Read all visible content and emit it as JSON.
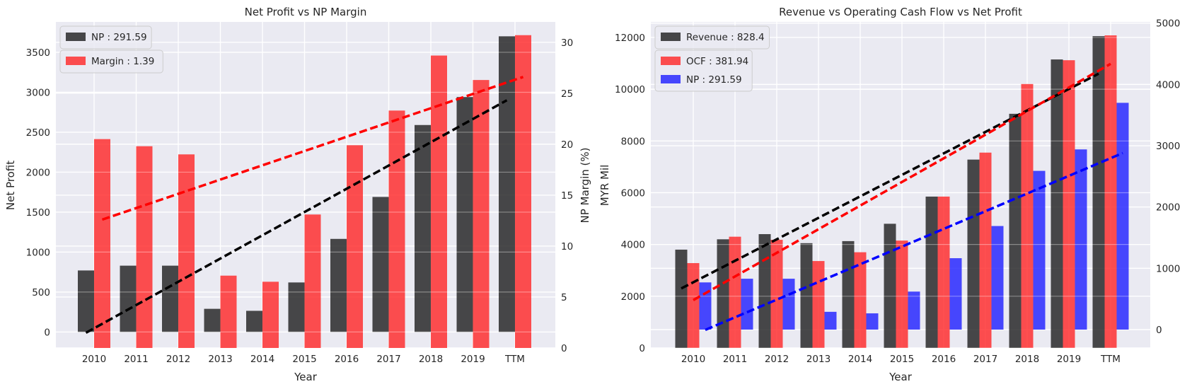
{
  "chart_data": [
    {
      "type": "bar",
      "title": "Net Profit vs NP Margin",
      "xlabel": "Year",
      "ylabel": "Net Profit",
      "ylabel_right": "NP Margin (%)",
      "categories": [
        "2010",
        "2011",
        "2012",
        "2013",
        "2014",
        "2015",
        "2016",
        "2017",
        "2018",
        "2019",
        "TTM"
      ],
      "ylim": [
        -200,
        3880
      ],
      "yticks": [
        0,
        500,
        1000,
        1500,
        2000,
        2500,
        3000,
        3500
      ],
      "ylim_right": [
        0,
        32
      ],
      "yticks_right": [
        0,
        5,
        10,
        15,
        20,
        25,
        30
      ],
      "grid": true,
      "series": [
        {
          "name": "NP",
          "axis": "left",
          "color": "#222222",
          "values": [
            770,
            830,
            830,
            290,
            265,
            620,
            1165,
            1690,
            2590,
            2940,
            3700
          ]
        },
        {
          "name": "Margin",
          "axis": "right",
          "color": "#ff2a2a",
          "values": [
            20.5,
            19.8,
            19.0,
            7.1,
            6.5,
            13.1,
            19.9,
            23.3,
            28.7,
            26.3,
            30.7
          ]
        }
      ],
      "trendlines": [
        {
          "axis": "left",
          "color": "#000000",
          "start": -10,
          "end": 2900
        },
        {
          "axis": "right",
          "color": "#ff0000",
          "start": 12.6,
          "end": 26.6
        }
      ],
      "legend": [
        {
          "label": "NP : 291.59",
          "color": "#222222"
        },
        {
          "label": "Margin : 1.39",
          "color": "#ff2a2a"
        }
      ],
      "legend_position": "top-left"
    },
    {
      "type": "bar",
      "title": "Revenue vs Operating Cash Flow vs Net Profit",
      "xlabel": "Year",
      "ylabel": "MYR Mil",
      "categories": [
        "2010",
        "2011",
        "2012",
        "2013",
        "2014",
        "2015",
        "2016",
        "2017",
        "2018",
        "2019",
        "TTM"
      ],
      "ylim": [
        0,
        12600
      ],
      "yticks": [
        0,
        2000,
        4000,
        6000,
        8000,
        10000,
        12000
      ],
      "ylim_right": [
        -300,
        5020
      ],
      "yticks_right": [
        0,
        1000,
        2000,
        3000,
        4000,
        5000
      ],
      "grid": true,
      "series": [
        {
          "name": "Revenue",
          "axis": "left",
          "color": "#222222",
          "values": [
            3800,
            4200,
            4400,
            4050,
            4130,
            4800,
            5850,
            7280,
            9050,
            11150,
            12050
          ]
        },
        {
          "name": "OCF",
          "axis": "left",
          "color": "#ff2a2a",
          "values": [
            3280,
            4300,
            4180,
            3360,
            3700,
            4150,
            5850,
            7550,
            10200,
            11120,
            12080
          ]
        },
        {
          "name": "NP",
          "axis": "right",
          "color": "#2222ff",
          "values": [
            770,
            830,
            830,
            290,
            265,
            620,
            1165,
            1690,
            2590,
            2940,
            3700
          ]
        }
      ],
      "trendlines": [
        {
          "axis": "left",
          "color": "#000000",
          "start": 2300,
          "end": 10600
        },
        {
          "axis": "left",
          "color": "#ff0000",
          "start": 1850,
          "end": 10980
        },
        {
          "axis": "right",
          "color": "#0000ff",
          "start": -5,
          "end": 2880
        }
      ],
      "legend": [
        {
          "label": "Revenue : 828.4",
          "color": "#222222"
        },
        {
          "label": "OCF : 381.94",
          "color": "#ff2a2a"
        },
        {
          "label": "NP : 291.59",
          "color": "#2222ff"
        }
      ],
      "legend_position": "top-left"
    }
  ]
}
